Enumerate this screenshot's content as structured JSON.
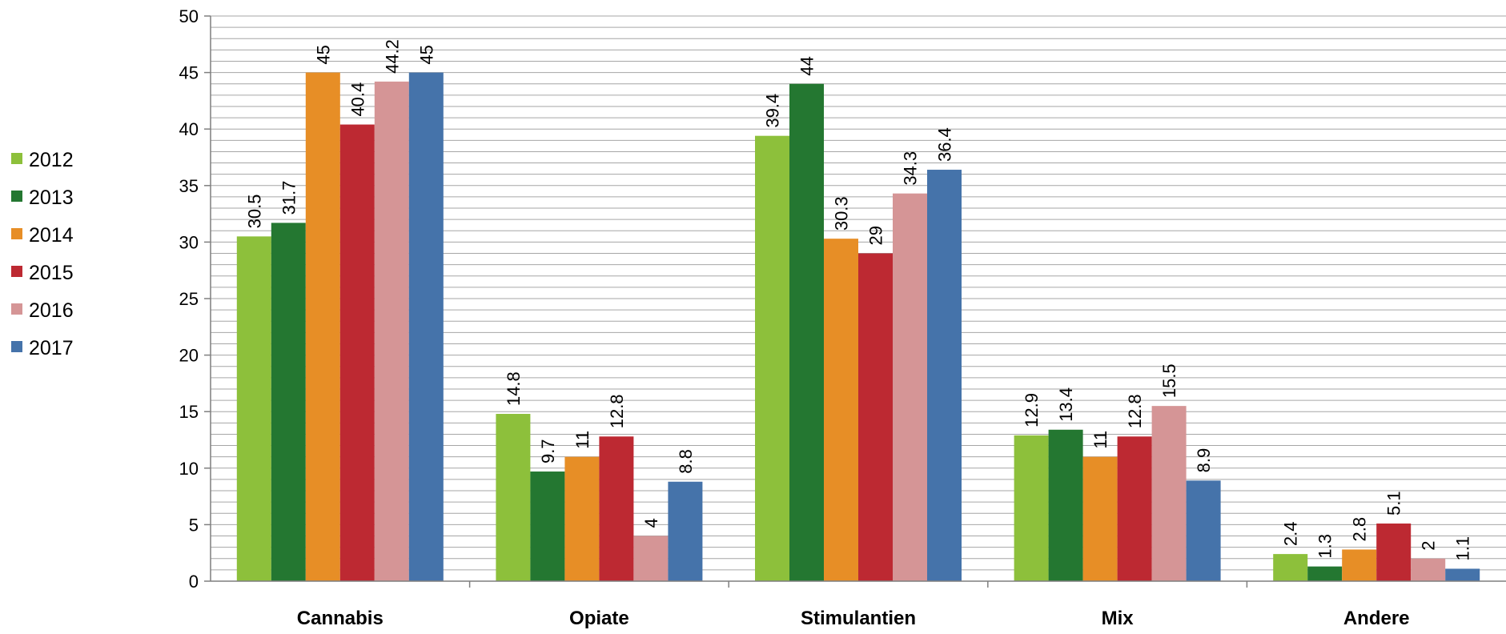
{
  "chart_data": {
    "type": "bar",
    "categories": [
      "Cannabis",
      "Opiate",
      "Stimulantien",
      "Mix",
      "Andere"
    ],
    "series": [
      {
        "name": "2012",
        "color": "#8dc03b",
        "values": [
          30.5,
          14.8,
          39.4,
          12.9,
          2.4
        ]
      },
      {
        "name": "2013",
        "color": "#247731",
        "values": [
          31.7,
          9.7,
          44,
          13.4,
          1.3
        ]
      },
      {
        "name": "2014",
        "color": "#e78e26",
        "values": [
          45,
          11,
          30.3,
          11,
          2.8
        ]
      },
      {
        "name": "2015",
        "color": "#bd2932",
        "values": [
          40.4,
          12.8,
          29,
          12.8,
          5.1
        ]
      },
      {
        "name": "2016",
        "color": "#d59596",
        "values": [
          44.2,
          4,
          34.3,
          15.5,
          2
        ]
      },
      {
        "name": "2017",
        "color": "#4573aa",
        "values": [
          45,
          8.8,
          36.4,
          8.9,
          1.1
        ]
      }
    ],
    "yticks": [
      "0",
      "5",
      "10",
      "15",
      "20",
      "25",
      "30",
      "35",
      "40",
      "45",
      "50"
    ],
    "ylim": [
      0,
      50
    ],
    "minor_grid_step": 1,
    "grid": true,
    "legend_position": "left"
  }
}
